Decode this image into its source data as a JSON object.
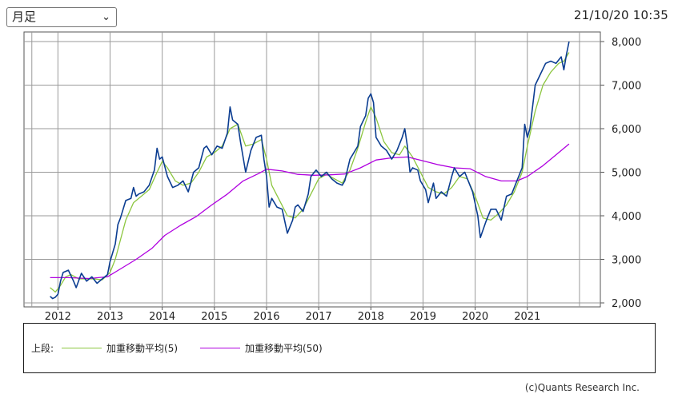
{
  "controls": {
    "period_select": {
      "value": "月足"
    },
    "timestamp": "21/10/20 10:35"
  },
  "legend": {
    "label": "上段:",
    "items": [
      {
        "name": "加重移動平均(5)",
        "color": "#8cc63f"
      },
      {
        "name": "加重移動平均(50)",
        "color": "#b000e0"
      }
    ]
  },
  "copyright": "(c)Quants Research Inc.",
  "colors": {
    "price": "#0b3d91",
    "ma5": "#8cc63f",
    "ma50": "#b000e0",
    "grid": "#9a9a9a"
  },
  "chart_data": {
    "type": "line",
    "title": "",
    "xlabel": "",
    "ylabel": "",
    "x_range": [
      2011.35,
      2022.4
    ],
    "ylim": [
      2000,
      8000
    ],
    "y_ticks": [
      2000,
      3000,
      4000,
      5000,
      6000,
      7000,
      8000
    ],
    "y_tick_labels": [
      "2,000",
      "3,000",
      "4,000",
      "5,000",
      "6,000",
      "7,000",
      "8,000"
    ],
    "x_tick_labels": [
      "2012",
      "2013",
      "2014",
      "2015",
      "2016",
      "2017",
      "2018",
      "2019",
      "2020",
      "2021"
    ],
    "x_tick_positions": [
      2012,
      2013,
      2014,
      2015,
      2016,
      2017,
      2018,
      2019,
      2020,
      2021
    ],
    "x_grid_positions": [
      2011.5,
      2012,
      2013,
      2014,
      2015,
      2016,
      2017,
      2018,
      2019,
      2020,
      2021,
      2022
    ],
    "grid": true,
    "series": [
      {
        "name": "price",
        "points": [
          [
            2011.85,
            2150
          ],
          [
            2011.9,
            2100
          ],
          [
            2011.95,
            2130
          ],
          [
            2012.0,
            2200
          ],
          [
            2012.05,
            2500
          ],
          [
            2012.1,
            2700
          ],
          [
            2012.2,
            2750
          ],
          [
            2012.3,
            2500
          ],
          [
            2012.35,
            2350
          ],
          [
            2012.45,
            2680
          ],
          [
            2012.55,
            2500
          ],
          [
            2012.65,
            2600
          ],
          [
            2012.75,
            2450
          ],
          [
            2012.85,
            2550
          ],
          [
            2012.95,
            2650
          ],
          [
            2013.0,
            2950
          ],
          [
            2013.1,
            3350
          ],
          [
            2013.15,
            3800
          ],
          [
            2013.2,
            3950
          ],
          [
            2013.3,
            4350
          ],
          [
            2013.4,
            4400
          ],
          [
            2013.45,
            4650
          ],
          [
            2013.5,
            4450
          ],
          [
            2013.55,
            4500
          ],
          [
            2013.65,
            4550
          ],
          [
            2013.75,
            4700
          ],
          [
            2013.85,
            5050
          ],
          [
            2013.9,
            5550
          ],
          [
            2013.95,
            5300
          ],
          [
            2014.0,
            5350
          ],
          [
            2014.1,
            4900
          ],
          [
            2014.2,
            4650
          ],
          [
            2014.3,
            4700
          ],
          [
            2014.4,
            4800
          ],
          [
            2014.5,
            4550
          ],
          [
            2014.6,
            5000
          ],
          [
            2014.7,
            5100
          ],
          [
            2014.8,
            5550
          ],
          [
            2014.85,
            5600
          ],
          [
            2014.95,
            5400
          ],
          [
            2015.05,
            5600
          ],
          [
            2015.15,
            5550
          ],
          [
            2015.25,
            5900
          ],
          [
            2015.3,
            6500
          ],
          [
            2015.35,
            6200
          ],
          [
            2015.45,
            6100
          ],
          [
            2015.5,
            5700
          ],
          [
            2015.6,
            5000
          ],
          [
            2015.7,
            5500
          ],
          [
            2015.8,
            5800
          ],
          [
            2015.9,
            5850
          ],
          [
            2015.95,
            5300
          ],
          [
            2016.0,
            4900
          ],
          [
            2016.05,
            4200
          ],
          [
            2016.1,
            4400
          ],
          [
            2016.2,
            4200
          ],
          [
            2016.3,
            4150
          ],
          [
            2016.4,
            3600
          ],
          [
            2016.5,
            3900
          ],
          [
            2016.55,
            4200
          ],
          [
            2016.6,
            4250
          ],
          [
            2016.7,
            4100
          ],
          [
            2016.8,
            4500
          ],
          [
            2016.85,
            4900
          ],
          [
            2016.95,
            5050
          ],
          [
            2017.05,
            4900
          ],
          [
            2017.15,
            5000
          ],
          [
            2017.25,
            4850
          ],
          [
            2017.35,
            4750
          ],
          [
            2017.45,
            4700
          ],
          [
            2017.5,
            4800
          ],
          [
            2017.6,
            5300
          ],
          [
            2017.75,
            5600
          ],
          [
            2017.8,
            6050
          ],
          [
            2017.9,
            6300
          ],
          [
            2017.95,
            6700
          ],
          [
            2018.0,
            6800
          ],
          [
            2018.05,
            6600
          ],
          [
            2018.1,
            5800
          ],
          [
            2018.2,
            5600
          ],
          [
            2018.3,
            5500
          ],
          [
            2018.4,
            5300
          ],
          [
            2018.5,
            5500
          ],
          [
            2018.6,
            5800
          ],
          [
            2018.65,
            6000
          ],
          [
            2018.7,
            5600
          ],
          [
            2018.75,
            5000
          ],
          [
            2018.8,
            5100
          ],
          [
            2018.9,
            5050
          ],
          [
            2018.95,
            4800
          ],
          [
            2019.05,
            4600
          ],
          [
            2019.1,
            4300
          ],
          [
            2019.2,
            4750
          ],
          [
            2019.25,
            4400
          ],
          [
            2019.35,
            4550
          ],
          [
            2019.45,
            4450
          ],
          [
            2019.55,
            4900
          ],
          [
            2019.6,
            5100
          ],
          [
            2019.7,
            4900
          ],
          [
            2019.8,
            5000
          ],
          [
            2019.9,
            4700
          ],
          [
            2019.95,
            4550
          ],
          [
            2020.05,
            4000
          ],
          [
            2020.1,
            3500
          ],
          [
            2020.2,
            3850
          ],
          [
            2020.3,
            4150
          ],
          [
            2020.4,
            4150
          ],
          [
            2020.5,
            3900
          ],
          [
            2020.6,
            4450
          ],
          [
            2020.7,
            4500
          ],
          [
            2020.8,
            4800
          ],
          [
            2020.9,
            5100
          ],
          [
            2020.95,
            6100
          ],
          [
            2021.0,
            5800
          ],
          [
            2021.05,
            6000
          ],
          [
            2021.15,
            7000
          ],
          [
            2021.25,
            7250
          ],
          [
            2021.35,
            7500
          ],
          [
            2021.45,
            7550
          ],
          [
            2021.55,
            7500
          ],
          [
            2021.65,
            7650
          ],
          [
            2021.7,
            7350
          ],
          [
            2021.75,
            7700
          ],
          [
            2021.8,
            8000
          ]
        ]
      },
      {
        "name": "加重移動平均(5)",
        "points": [
          [
            2011.85,
            2350
          ],
          [
            2011.95,
            2250
          ],
          [
            2012.05,
            2400
          ],
          [
            2012.15,
            2600
          ],
          [
            2012.25,
            2650
          ],
          [
            2012.4,
            2550
          ],
          [
            2012.55,
            2550
          ],
          [
            2012.7,
            2550
          ],
          [
            2012.85,
            2530
          ],
          [
            2013.0,
            2700
          ],
          [
            2013.1,
            3000
          ],
          [
            2013.2,
            3450
          ],
          [
            2013.3,
            3900
          ],
          [
            2013.45,
            4300
          ],
          [
            2013.6,
            4450
          ],
          [
            2013.75,
            4600
          ],
          [
            2013.9,
            5000
          ],
          [
            2014.0,
            5250
          ],
          [
            2014.1,
            5100
          ],
          [
            2014.25,
            4800
          ],
          [
            2014.4,
            4700
          ],
          [
            2014.55,
            4750
          ],
          [
            2014.7,
            5000
          ],
          [
            2014.85,
            5350
          ],
          [
            2015.0,
            5450
          ],
          [
            2015.15,
            5600
          ],
          [
            2015.3,
            6000
          ],
          [
            2015.45,
            6100
          ],
          [
            2015.6,
            5600
          ],
          [
            2015.75,
            5650
          ],
          [
            2015.9,
            5750
          ],
          [
            2016.0,
            5300
          ],
          [
            2016.1,
            4700
          ],
          [
            2016.25,
            4350
          ],
          [
            2016.4,
            4000
          ],
          [
            2016.55,
            3950
          ],
          [
            2016.7,
            4150
          ],
          [
            2016.85,
            4500
          ],
          [
            2017.0,
            4850
          ],
          [
            2017.15,
            4950
          ],
          [
            2017.3,
            4850
          ],
          [
            2017.45,
            4750
          ],
          [
            2017.6,
            5050
          ],
          [
            2017.75,
            5550
          ],
          [
            2017.9,
            6150
          ],
          [
            2018.0,
            6500
          ],
          [
            2018.1,
            6250
          ],
          [
            2018.25,
            5700
          ],
          [
            2018.4,
            5450
          ],
          [
            2018.55,
            5400
          ],
          [
            2018.65,
            5600
          ],
          [
            2018.8,
            5350
          ],
          [
            2018.95,
            5000
          ],
          [
            2019.1,
            4650
          ],
          [
            2019.25,
            4550
          ],
          [
            2019.4,
            4500
          ],
          [
            2019.55,
            4650
          ],
          [
            2019.7,
            4900
          ],
          [
            2019.85,
            4850
          ],
          [
            2020.0,
            4450
          ],
          [
            2020.15,
            3950
          ],
          [
            2020.3,
            3900
          ],
          [
            2020.45,
            4050
          ],
          [
            2020.6,
            4250
          ],
          [
            2020.75,
            4550
          ],
          [
            2020.9,
            5000
          ],
          [
            2021.0,
            5600
          ],
          [
            2021.15,
            6400
          ],
          [
            2021.3,
            7000
          ],
          [
            2021.45,
            7300
          ],
          [
            2021.6,
            7500
          ],
          [
            2021.7,
            7550
          ],
          [
            2021.8,
            7750
          ]
        ]
      },
      {
        "name": "加重移動平均(50)",
        "points": [
          [
            2011.85,
            2580
          ],
          [
            2012.2,
            2580
          ],
          [
            2012.6,
            2560
          ],
          [
            2012.95,
            2600
          ],
          [
            2013.2,
            2780
          ],
          [
            2013.5,
            3000
          ],
          [
            2013.8,
            3250
          ],
          [
            2014.05,
            3550
          ],
          [
            2014.35,
            3780
          ],
          [
            2014.65,
            3980
          ],
          [
            2014.95,
            4250
          ],
          [
            2015.25,
            4500
          ],
          [
            2015.55,
            4800
          ],
          [
            2015.85,
            4970
          ],
          [
            2016.0,
            5070
          ],
          [
            2016.3,
            5030
          ],
          [
            2016.6,
            4950
          ],
          [
            2016.9,
            4930
          ],
          [
            2017.2,
            4940
          ],
          [
            2017.5,
            4960
          ],
          [
            2017.8,
            5100
          ],
          [
            2018.1,
            5280
          ],
          [
            2018.4,
            5330
          ],
          [
            2018.7,
            5350
          ],
          [
            2019.0,
            5260
          ],
          [
            2019.3,
            5170
          ],
          [
            2019.6,
            5100
          ],
          [
            2019.9,
            5080
          ],
          [
            2020.2,
            4900
          ],
          [
            2020.5,
            4800
          ],
          [
            2020.8,
            4800
          ],
          [
            2021.0,
            4900
          ],
          [
            2021.3,
            5150
          ],
          [
            2021.55,
            5400
          ],
          [
            2021.8,
            5650
          ]
        ]
      }
    ]
  }
}
